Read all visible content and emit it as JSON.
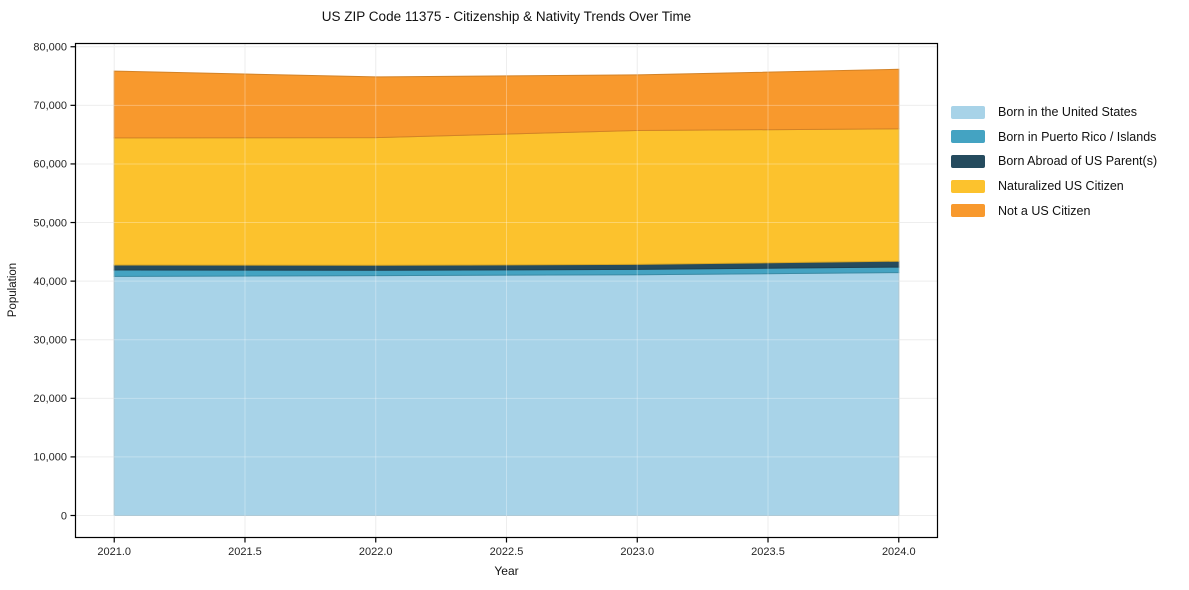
{
  "figure": {
    "title": "US ZIP Code 11375 - Citizenship & Nativity Trends Over Time",
    "xlabel": "Year",
    "ylabel": "Population"
  },
  "chart_data": {
    "type": "area",
    "stacked": true,
    "title": "US ZIP Code 11375 - Citizenship & Nativity Trends Over Time",
    "xlabel": "Year",
    "ylabel": "Population",
    "x": [
      2021,
      2022,
      2023,
      2024
    ],
    "series": [
      {
        "name": "Born in the United States",
        "color": "#a8d3e8",
        "values": [
          40800,
          40950,
          41100,
          41450
        ]
      },
      {
        "name": "Born in Puerto Rico / Islands",
        "color": "#44a3c2",
        "values": [
          1100,
          900,
          900,
          950
        ]
      },
      {
        "name": "Born Abroad of US Parent(s)",
        "color": "#254b5e",
        "values": [
          850,
          850,
          850,
          1000
        ]
      },
      {
        "name": "Naturalized US Citizen",
        "color": "#fcc22d",
        "values": [
          21700,
          21800,
          22850,
          22600
        ]
      },
      {
        "name": "Not a US Citizen",
        "color": "#f8992d",
        "values": [
          11400,
          10350,
          9500,
          10150
        ]
      }
    ],
    "stack_totals": [
      75850,
      74850,
      75200,
      76150
    ],
    "xlim": [
      2020.85,
      2024.15
    ],
    "ylim": [
      -3840,
      80640
    ],
    "x_ticks": {
      "values": [
        2021.0,
        2021.5,
        2022.0,
        2022.5,
        2023.0,
        2023.5,
        2024.0
      ],
      "labels": [
        "2021.0",
        "2021.5",
        "2022.0",
        "2022.5",
        "2023.0",
        "2023.5",
        "2024.0"
      ]
    },
    "y_ticks": {
      "values": [
        0,
        10000,
        20000,
        30000,
        40000,
        50000,
        60000,
        70000,
        80000
      ],
      "labels": [
        "0",
        "10,000",
        "20,000",
        "30,000",
        "40,000",
        "50,000",
        "60,000",
        "70,000",
        "80,000"
      ]
    },
    "grid": true,
    "legend_position": "right-outside"
  },
  "colors": {
    "grid": "#e7e7e7",
    "spine": "#000000",
    "tick_text": "#262626",
    "background": "#ffffff"
  }
}
